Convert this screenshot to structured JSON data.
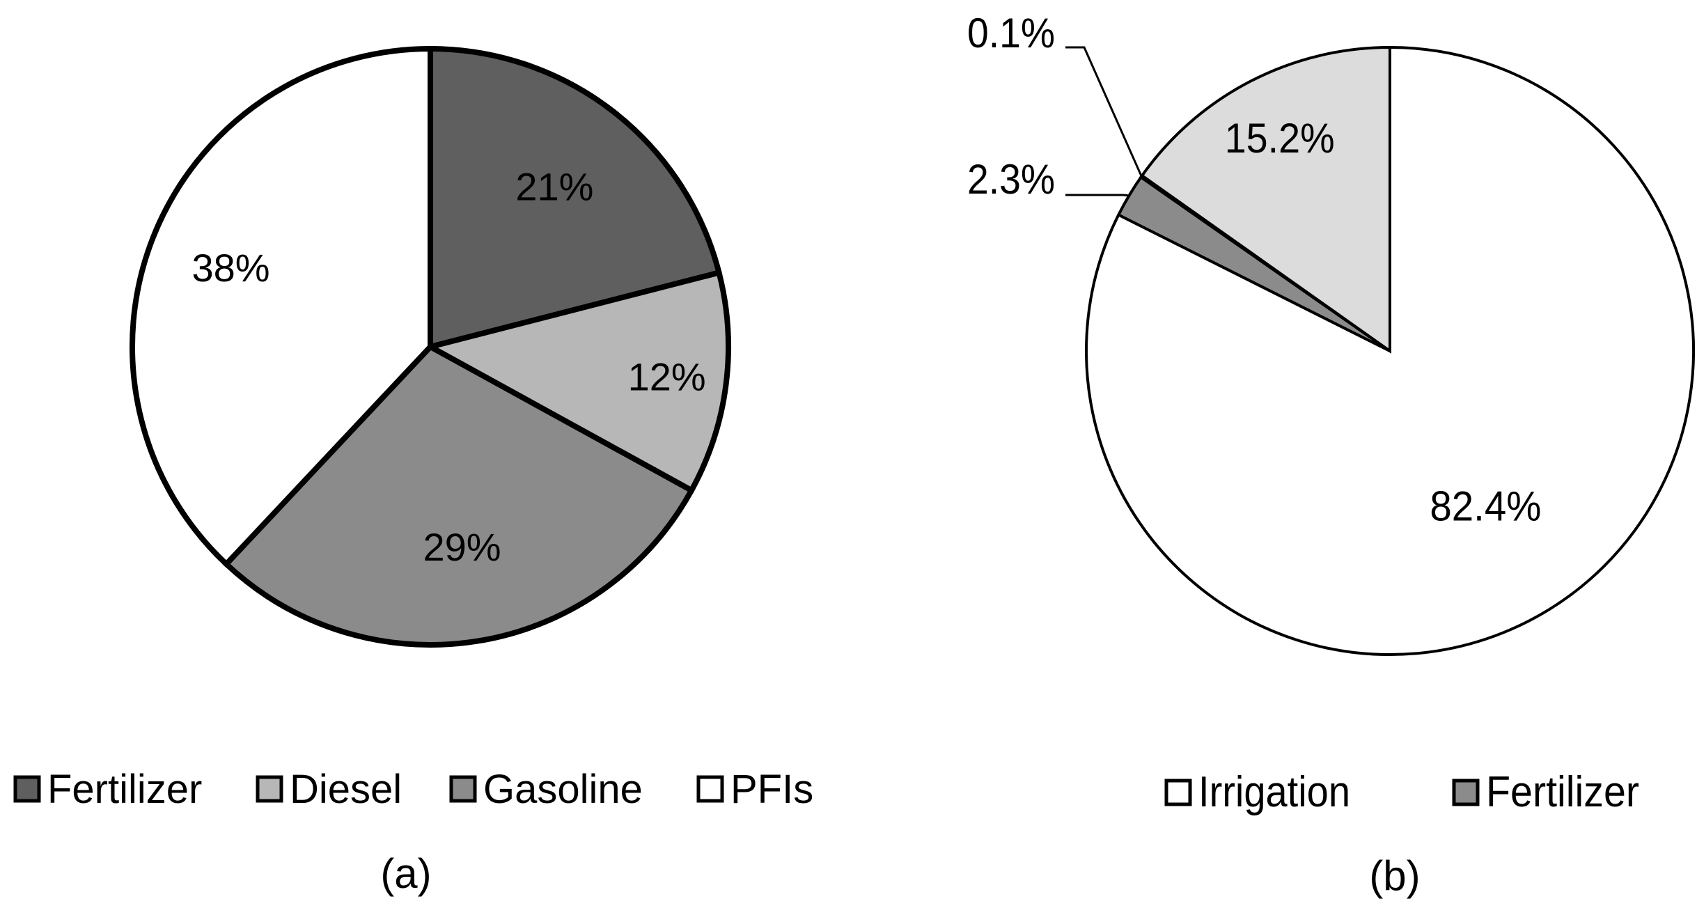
{
  "chart_data": [
    {
      "type": "pie",
      "caption": "(a)",
      "categories": [
        "Fertilizer",
        "Diesel",
        "Gasoline",
        "PFIs"
      ],
      "values": [
        21,
        12,
        29,
        38
      ],
      "value_labels": [
        "21%",
        "12%",
        "29%",
        "38%"
      ],
      "colors": [
        "#5f5f5f",
        "#b7b7b7",
        "#8b8b8b",
        "#ffffff"
      ],
      "start": "12 o'clock",
      "direction": "clockwise",
      "legend": {
        "placement": "bottom",
        "entries": [
          {
            "label": "Fertilizer",
            "color": "#5f5f5f"
          },
          {
            "label": "Diesel",
            "color": "#b7b7b7"
          },
          {
            "label": "Gasoline",
            "color": "#8b8b8b"
          },
          {
            "label": "PFIs",
            "color": "#ffffff"
          }
        ]
      }
    },
    {
      "type": "pie",
      "caption": "(b)",
      "categories": [
        "Irrigation",
        "Fertilizer",
        "",
        ""
      ],
      "values": [
        82.4,
        2.3,
        0.1,
        15.2
      ],
      "value_labels": [
        "82.4%",
        "2.3%",
        "0.1%",
        "15.2%"
      ],
      "colors": [
        "#ffffff",
        "#8b8b8b",
        "#5f5f5f",
        "#dcdcdc"
      ],
      "start": "12 o'clock",
      "direction": "clockwise",
      "legend": {
        "placement": "bottom",
        "entries": [
          {
            "label": "Irrigation",
            "color": "#ffffff"
          },
          {
            "label": "Fertilizer",
            "color": "#8b8b8b"
          }
        ]
      }
    }
  ]
}
